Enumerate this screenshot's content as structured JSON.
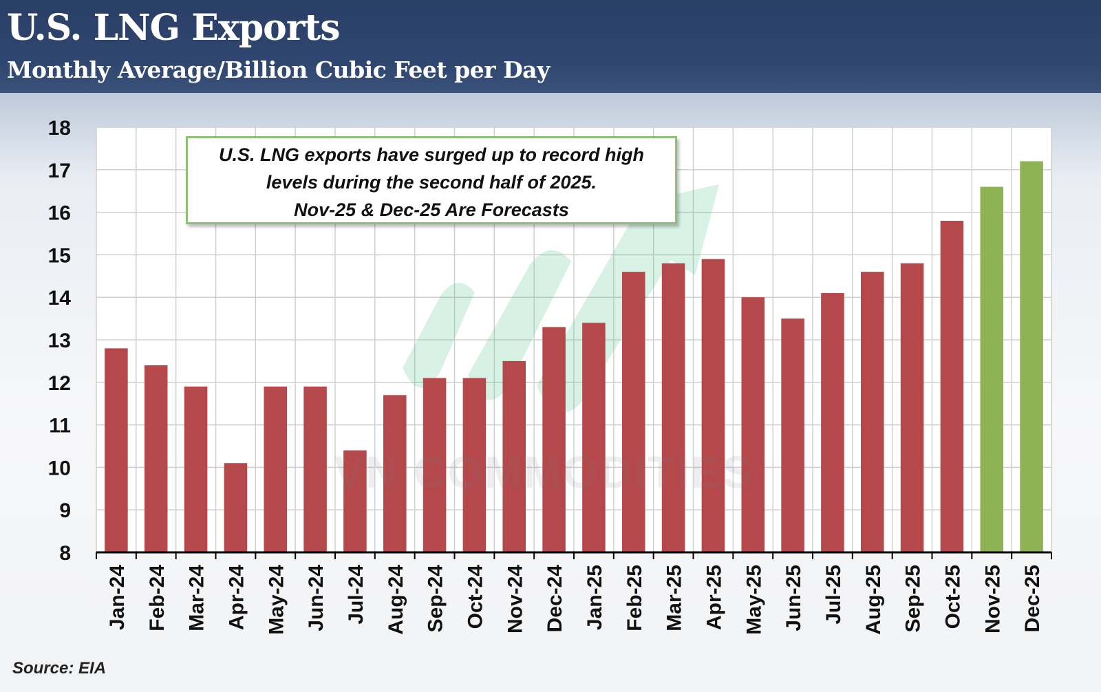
{
  "header": {
    "title": "U.S. LNG Exports",
    "subtitle": "Monthly Average/Billion Cubic Feet per Day"
  },
  "annotation": {
    "line1": "U.S. LNG exports have surged up to record high",
    "line2": "levels during the second half of 2025.",
    "line3": "Nov-25 & Dec-25 Are Forecasts"
  },
  "watermark": "VN COMMODITIES",
  "source": "Source: EIA",
  "colors": {
    "actual": "#b5484a",
    "forecast": "#8db355",
    "header": "#2c4269"
  },
  "chart_data": {
    "type": "bar",
    "title": "U.S. LNG Exports",
    "subtitle": "Monthly Average/Billion Cubic Feet per Day",
    "xlabel": "",
    "ylabel": "",
    "ylim": [
      8,
      18
    ],
    "yticks": [
      8,
      9,
      10,
      11,
      12,
      13,
      14,
      15,
      16,
      17,
      18
    ],
    "grid": true,
    "categories": [
      "Jan-24",
      "Feb-24",
      "Mar-24",
      "Apr-24",
      "May-24",
      "Jun-24",
      "Jul-24",
      "Aug-24",
      "Sep-24",
      "Oct-24",
      "Nov-24",
      "Dec-24",
      "Jan-25",
      "Feb-25",
      "Mar-25",
      "Apr-25",
      "May-25",
      "Jun-25",
      "Jul-25",
      "Aug-25",
      "Sep-25",
      "Oct-25",
      "Nov-25",
      "Dec-25"
    ],
    "values": [
      12.8,
      12.4,
      11.9,
      10.1,
      11.9,
      11.9,
      10.4,
      11.7,
      12.1,
      12.1,
      12.5,
      13.3,
      13.4,
      14.6,
      14.8,
      14.9,
      14.0,
      13.5,
      14.1,
      14.6,
      14.8,
      15.8,
      16.6,
      17.2
    ],
    "forecast": [
      false,
      false,
      false,
      false,
      false,
      false,
      false,
      false,
      false,
      false,
      false,
      false,
      false,
      false,
      false,
      false,
      false,
      false,
      false,
      false,
      false,
      false,
      true,
      true
    ]
  }
}
